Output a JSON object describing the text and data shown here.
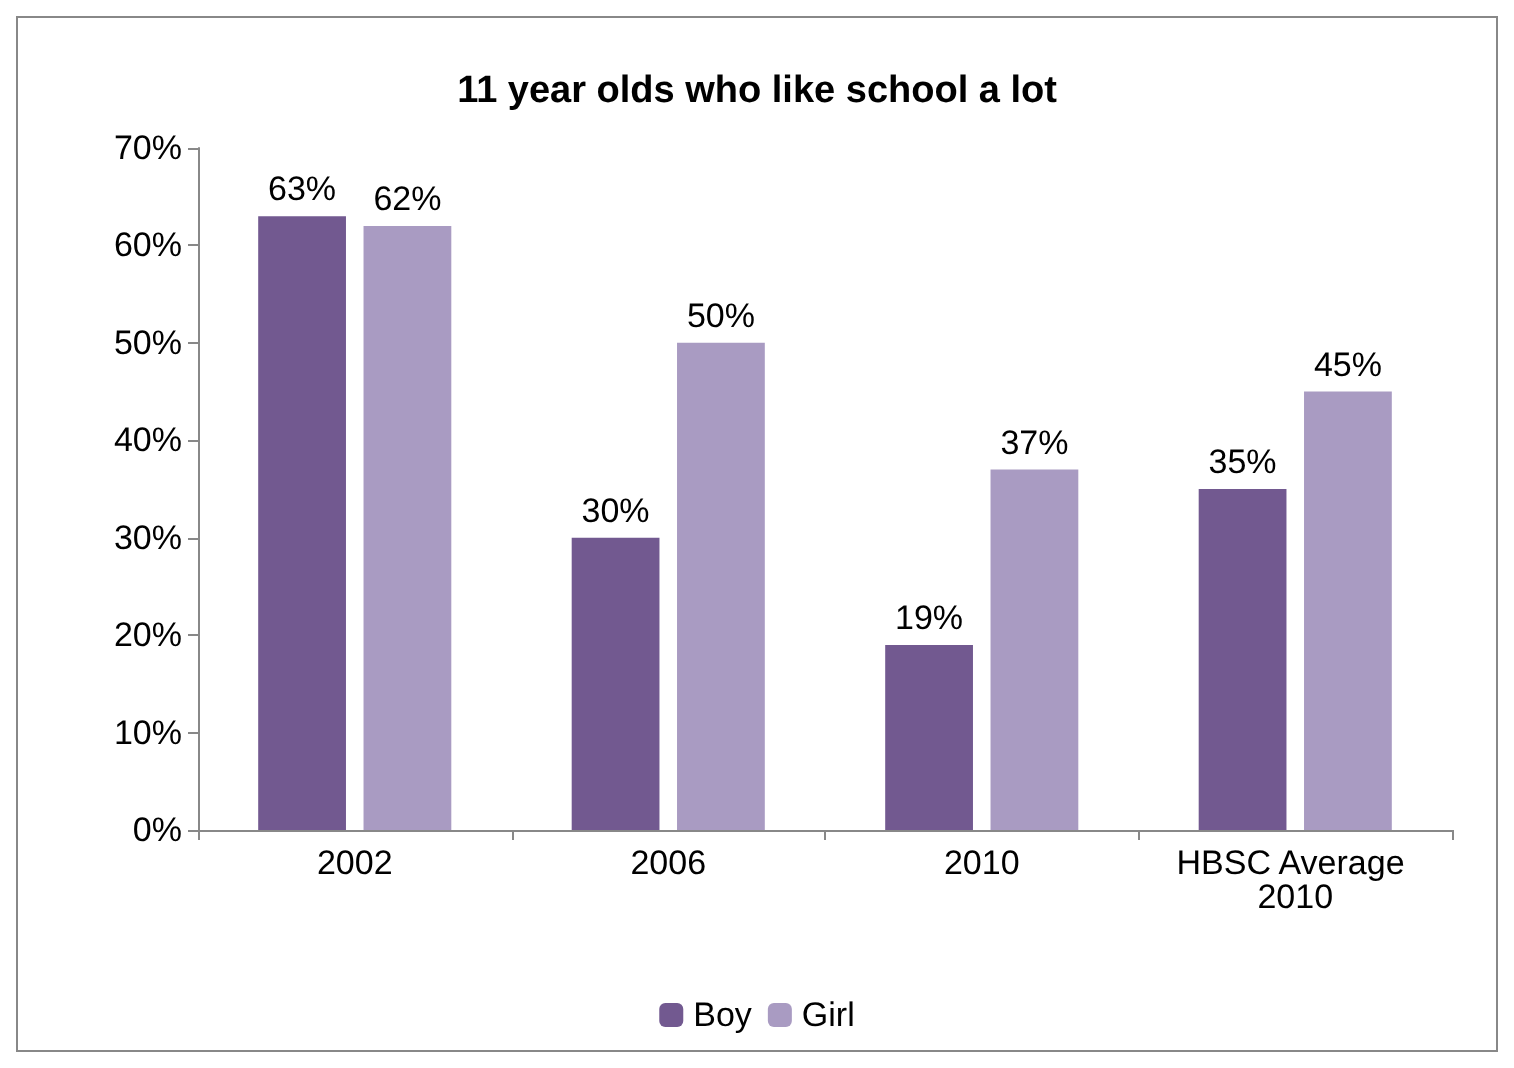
{
  "chart_data": {
    "type": "bar",
    "title": "11 year olds who like school a lot",
    "categories": [
      "2002",
      "2006",
      "2010",
      "HBSC Average 2010"
    ],
    "series": [
      {
        "name": "Boy",
        "color": "#725990",
        "values": [
          63,
          30,
          19,
          35
        ],
        "value_labels": [
          "63%",
          "30%",
          "19%",
          "35%"
        ]
      },
      {
        "name": "Girl",
        "color": "#a99bc2",
        "values": [
          62,
          50,
          37,
          45
        ],
        "value_labels": [
          "62%",
          "50%",
          "37%",
          "45%"
        ]
      }
    ],
    "ylim": [
      0,
      70
    ],
    "yticks": [
      {
        "value": 0,
        "label": "0%"
      },
      {
        "value": 10,
        "label": "10%"
      },
      {
        "value": 20,
        "label": "20%"
      },
      {
        "value": 30,
        "label": "30%"
      },
      {
        "value": 40,
        "label": "40%"
      },
      {
        "value": 50,
        "label": "50%"
      },
      {
        "value": 60,
        "label": "60%"
      },
      {
        "value": 70,
        "label": "70%"
      }
    ],
    "grid": false,
    "legend": "bottom"
  }
}
